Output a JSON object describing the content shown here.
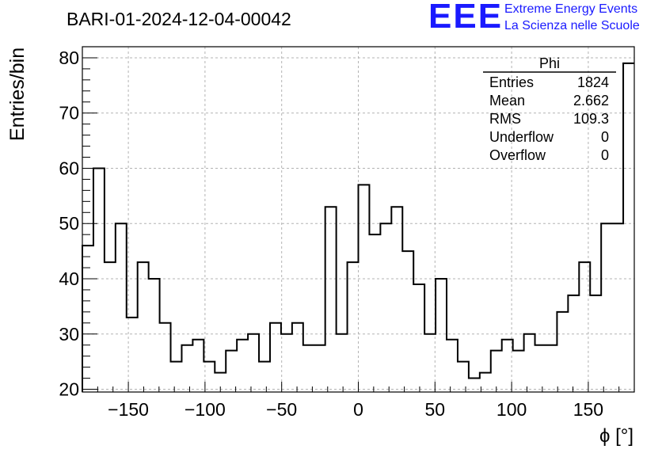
{
  "chart_data": {
    "type": "histogram",
    "title": "BARI-01-2024-12-04-00042",
    "xlabel": "ϕ [°]",
    "ylabel": "Entries/bin",
    "xlim": [
      -180,
      180
    ],
    "ylim": [
      19.5,
      82
    ],
    "bin_width": 7.2,
    "grid": true,
    "x_ticks": [
      -150,
      -100,
      -50,
      0,
      50,
      100,
      150
    ],
    "x_tick_labels": [
      "−150",
      "−100",
      "−50",
      "0",
      "50",
      "100",
      "150"
    ],
    "y_ticks": [
      20,
      30,
      40,
      50,
      60,
      70,
      80
    ],
    "y_tick_labels": [
      "20",
      "30",
      "40",
      "50",
      "60",
      "70",
      "80"
    ],
    "bin_edges_start": -180,
    "values": [
      46,
      60,
      43,
      50,
      33,
      43,
      40,
      32,
      25,
      28,
      29,
      25,
      23,
      27,
      29,
      30,
      25,
      32,
      30,
      32,
      28,
      28,
      53,
      30,
      43,
      57,
      48,
      50,
      53,
      45,
      39,
      30,
      40,
      29,
      25,
      22,
      23,
      27,
      29,
      27,
      30,
      28,
      28,
      34,
      37,
      43,
      37,
      50,
      50,
      79
    ],
    "line_color": "#000000"
  },
  "stats": {
    "title": "Phi",
    "rows": [
      {
        "label": "Entries",
        "value": "1824"
      },
      {
        "label": "Mean",
        "value": "2.662"
      },
      {
        "label": "RMS",
        "value": "109.3"
      },
      {
        "label": "Underflow",
        "value": "0"
      },
      {
        "label": "Overflow",
        "value": "0"
      }
    ]
  },
  "logo": {
    "mark": "EEE",
    "line1": "Extreme Energy Events",
    "line2": "La Scienza nelle Scuole",
    "color": "#1a1aff"
  }
}
